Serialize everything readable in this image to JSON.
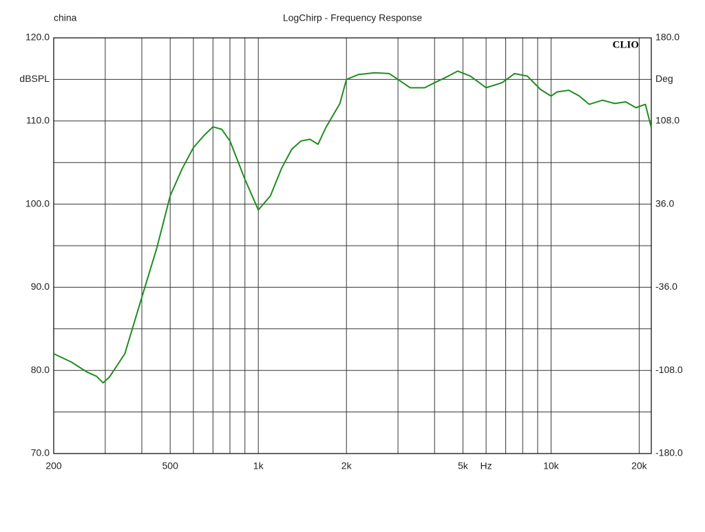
{
  "chart_data": {
    "type": "line",
    "top_left_text": "china",
    "title": "LogChirp - Frequency Response",
    "brand": "CLIO",
    "ylabel": "dBSPL",
    "y2label": "Deg",
    "xlabel": "Hz",
    "color": "#1e8c1e",
    "log_x": true,
    "grid": true,
    "xlim": [
      200,
      22000
    ],
    "xticks": [
      200,
      500,
      {
        "value": 1000,
        "label": "1k"
      },
      {
        "value": 2000,
        "label": "2k"
      },
      {
        "value": 5000,
        "label": "5k"
      },
      {
        "value": 10000,
        "label": "10k"
      },
      {
        "value": 20000,
        "label": "20k"
      }
    ],
    "xminor": [
      300,
      400,
      600,
      700,
      800,
      900,
      3000,
      4000,
      6000,
      7000,
      8000,
      9000
    ],
    "ylim": [
      70,
      120
    ],
    "yticks": [
      {
        "value": 70,
        "label": "70.0"
      },
      {
        "value": 80,
        "label": "80.0"
      },
      {
        "value": 90,
        "label": "90.0"
      },
      {
        "value": 100,
        "label": "100.0"
      },
      {
        "value": 110,
        "label": "110.0"
      },
      {
        "value": 120,
        "label": "120.0"
      }
    ],
    "yminor": [
      75,
      85,
      95,
      105,
      115
    ],
    "y2lim": [
      -180,
      180
    ],
    "y2ticks": [
      {
        "value": -180,
        "label": "-180.0"
      },
      {
        "value": -108,
        "label": "-108.0"
      },
      {
        "value": -36,
        "label": "-36.0"
      },
      {
        "value": 36,
        "label": "36.0"
      },
      {
        "value": 108,
        "label": "108.0"
      },
      {
        "value": 180,
        "label": "180.0"
      }
    ],
    "x": [
      200,
      230,
      260,
      280,
      295,
      310,
      350,
      400,
      450,
      500,
      550,
      600,
      650,
      700,
      750,
      800,
      900,
      1000,
      1100,
      1200,
      1300,
      1400,
      1500,
      1600,
      1700,
      1900,
      2000,
      2200,
      2500,
      2800,
      3000,
      3300,
      3700,
      4000,
      4400,
      4800,
      5300,
      6000,
      6800,
      7500,
      8300,
      9200,
      10000,
      10500,
      11500,
      12500,
      13500,
      15000,
      16500,
      18000,
      19500,
      21000,
      22000
    ],
    "values": [
      82.0,
      81.0,
      79.8,
      79.3,
      78.5,
      79.2,
      82.0,
      88.8,
      94.7,
      101.0,
      104.3,
      106.8,
      108.2,
      109.3,
      109.0,
      107.6,
      103.0,
      99.3,
      101.0,
      104.3,
      106.6,
      107.6,
      107.8,
      107.2,
      109.2,
      112.1,
      115.0,
      115.6,
      115.8,
      115.7,
      115.0,
      114.0,
      114.0,
      114.6,
      115.3,
      116.0,
      115.4,
      114.0,
      114.6,
      115.7,
      115.4,
      113.8,
      113.0,
      113.5,
      113.7,
      113.0,
      112.0,
      112.5,
      112.1,
      112.3,
      111.6,
      112.0,
      109.2
    ]
  }
}
